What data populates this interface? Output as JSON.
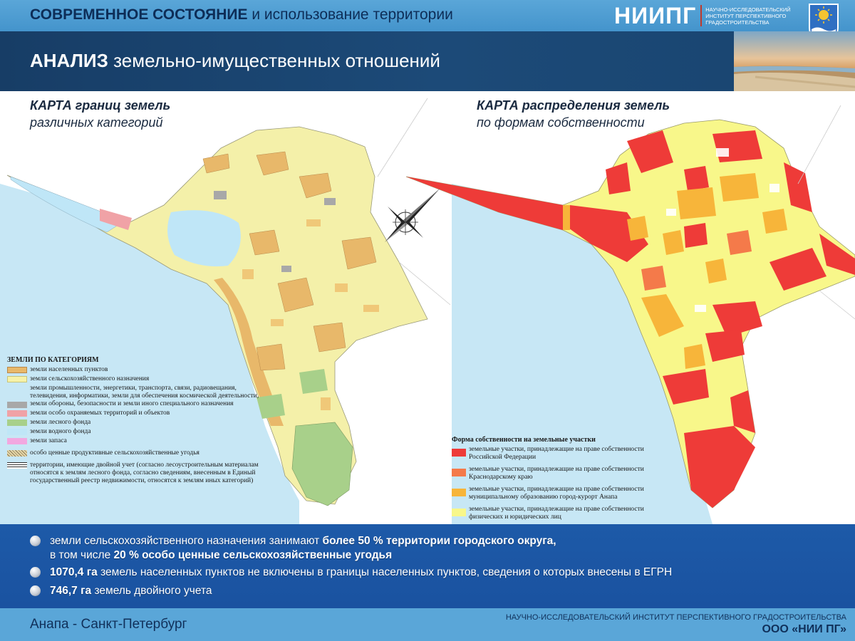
{
  "header": {
    "title_bold": "СОВРЕМЕННОЕ СОСТОЯНИЕ",
    "title_rest": " и использование территории",
    "logo_main": "НИИПГ",
    "logo_sub": "НАУЧНО-ИССЛЕДОВАТЕЛЬСКИЙ ИНСТИТУТ ПЕРСПЕКТИВНОГО ГРАДОСТРОИТЕЛЬСТВА",
    "emblem_icon": "anapa-coat-of-arms-icon"
  },
  "section": {
    "title_bold": "АНАЛИЗ",
    "title_rest": " земельно-имущественных отношений"
  },
  "map_left": {
    "caption_bold": "КАРТА границ земель",
    "caption_rest": "различных категорий",
    "legend_title": "ЗЕМЛИ ПО КАТЕГОРИЯМ",
    "legend_items": [
      {
        "label": "земли населенных пунктов",
        "color": "#e8b86a"
      },
      {
        "label": "земли сельскохозяйственного назначения",
        "color": "#f6f2a8"
      },
      {
        "label": "земли промышленности, энергетики, транспорта, связи, радиовещания, телевидения, информатики, земли для обеспечения космической деятельности, земли обороны, безопасности и земли иного специального назначения",
        "color": "#a8a8a8"
      },
      {
        "label": "земли особо охраняемых территорий и объектов",
        "color": "#f0a2a6"
      },
      {
        "label": "земли лесного фонда",
        "color": "#a8d08a"
      },
      {
        "label": "земли водного фонда",
        "color": "#bfe6f7"
      },
      {
        "label": "земли запаса",
        "color": "#f2a8e0"
      },
      {
        "label": "особо ценные продуктивные сельскохозяйственные угодья",
        "color": "hatch"
      },
      {
        "label": "территории, имеющие двойной учет (согласно лесоустроительным материалам относятся к землям лесного фонда, согласно сведениям, внесенным в Единый государственный реестр недвижимости, относятся к землям иных категорий)",
        "color": "stripe"
      }
    ]
  },
  "map_right": {
    "caption_bold": "КАРТА распределения земель",
    "caption_rest": "по формам собственности",
    "legend_title": "Форма собственности на земельные участки",
    "legend_items": [
      {
        "label": "земельные участки, принадлежащие на праве собственности Российской Федерации",
        "color": "#ee3b38"
      },
      {
        "label": "земельные участки, принадлежащие на праве собственности Краснодарскому краю",
        "color": "#f47a4a"
      },
      {
        "label": "земельные участки, принадлежащие на праве собственности муниципальному образованию город-курорт Анапа",
        "color": "#f7b53a"
      },
      {
        "label": "земельные участки, принадлежащие на праве собственности физических и юридических лиц",
        "color": "#f8f78a"
      }
    ]
  },
  "findings": [
    {
      "pre": "земли сельскохозяйственного назначения занимают ",
      "bold": "более 50 % территории городского округа,",
      "post": ""
    },
    {
      "pre": "в том числе ",
      "bold": "20 % особо ценные сельскохозяйственные угодья",
      "post": ""
    },
    {
      "pre": "",
      "bold": "1070,4 га",
      "post": " земель населенных пунктов не включены в границы населенных пунктов, сведения о которых внесены в ЕГРН"
    },
    {
      "pre": "",
      "bold": "746,7 га",
      "post": " земель двойного учета"
    }
  ],
  "footer": {
    "city": "Анапа - Санкт-Петербург",
    "institute": "НАУЧНО-ИССЛЕДОВАТЕЛЬСКИЙ ИНСТИТУТ ПЕРСПЕКТИВНОГО ГРАДОСТРОИТЕЛЬСТВА",
    "org": "ООО «НИИ ПГ»"
  },
  "colors": {
    "header_bg": "#5aa6d8",
    "band_bg": "#1c4a78",
    "findings_bg": "#1d5aa8",
    "sea": "#c7e7f5",
    "federal": "#ee3b38",
    "regional": "#f47a4a",
    "municipal": "#f7b53a",
    "private": "#f8f78a"
  }
}
